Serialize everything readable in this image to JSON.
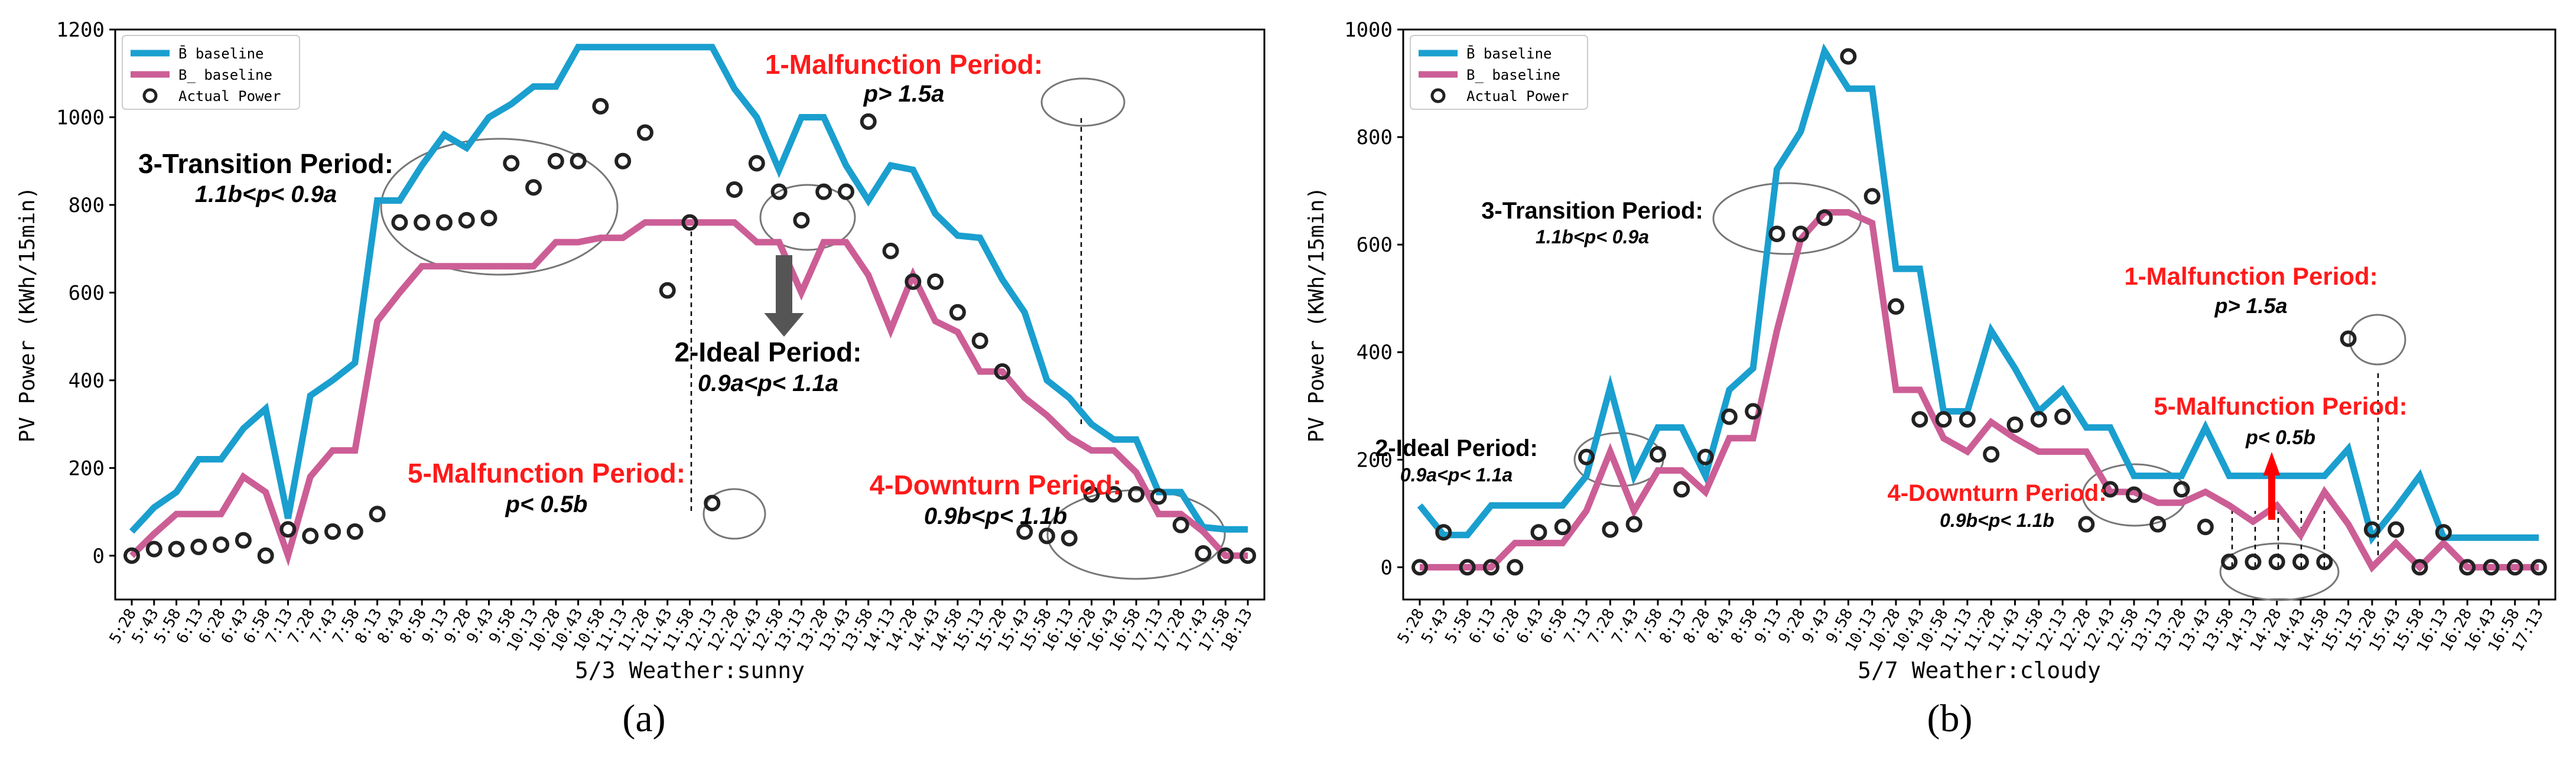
{
  "chart_data": [
    {
      "type": "line",
      "panel_label": "(a)",
      "xlabel": "5/3 Weather:sunny",
      "ylabel": "PV Power (KWh/15min)",
      "ylim": [
        -100,
        1200
      ],
      "yticks": [
        0,
        200,
        400,
        600,
        800,
        1000,
        1200
      ],
      "ytick_labels": [
        "0",
        "200",
        "400",
        "600",
        "800",
        "1000",
        "1200"
      ],
      "x_tick_labels": [
        "5:28",
        "5:43",
        "5:58",
        "6:13",
        "6:28",
        "6:43",
        "6:58",
        "7:13",
        "7:28",
        "7:43",
        "7:58",
        "8:13",
        "8:43",
        "8:58",
        "9:13",
        "9:28",
        "9:43",
        "9:58",
        "10:13",
        "10:28",
        "10:43",
        "10:58",
        "11:13",
        "11:28",
        "11:43",
        "11:58",
        "12:13",
        "12:28",
        "12:43",
        "12:58",
        "13:13",
        "13:28",
        "13:43",
        "13:58",
        "14:13",
        "14:28",
        "14:43",
        "14:58",
        "15:13",
        "15:28",
        "15:43",
        "15:58",
        "16:13",
        "16:28",
        "16:43",
        "16:58",
        "17:13",
        "17:28",
        "17:43",
        "17:58",
        "18:13"
      ],
      "legend": [
        "B̄ baseline",
        "B̲ baseline",
        "Actual Power"
      ],
      "legend_position": "top-left",
      "series": [
        {
          "name": "B̄ baseline",
          "color": "#1a9fcf",
          "values": [
            55,
            110,
            145,
            220,
            220,
            290,
            335,
            85,
            365,
            400,
            440,
            810,
            810,
            890,
            960,
            930,
            1000,
            1030,
            1070,
            1070,
            1160,
            1160,
            1160,
            1160,
            1160,
            1160,
            1160,
            1065,
            1000,
            880,
            1000,
            1000,
            890,
            810,
            890,
            880,
            780,
            730,
            725,
            630,
            555,
            400,
            360,
            300,
            265,
            265,
            145,
            145,
            65,
            60,
            60
          ]
        },
        {
          "name": "B̲ baseline",
          "color": "#cc5e96",
          "values": [
            0,
            50,
            95,
            95,
            95,
            180,
            145,
            0,
            180,
            240,
            240,
            535,
            600,
            660,
            660,
            660,
            660,
            660,
            660,
            715,
            715,
            725,
            725,
            760,
            760,
            760,
            760,
            760,
            715,
            715,
            600,
            715,
            715,
            640,
            515,
            640,
            535,
            510,
            420,
            420,
            360,
            320,
            270,
            240,
            240,
            190,
            95,
            95,
            55,
            0,
            0
          ]
        },
        {
          "name": "Actual Power",
          "color": "#222222",
          "values": [
            0,
            15,
            15,
            20,
            25,
            35,
            0,
            60,
            45,
            55,
            55,
            95,
            760,
            760,
            760,
            765,
            770,
            895,
            840,
            900,
            900,
            1025,
            900,
            965,
            605,
            760,
            120,
            835,
            895,
            830,
            765,
            830,
            830,
            990,
            695,
            625,
            625,
            555,
            490,
            420,
            55,
            45,
            40,
            140,
            140,
            140,
            135,
            70,
            5,
            0,
            0
          ]
        }
      ],
      "annotations": [
        {
          "text": "1-Malfunction Period:",
          "color": "red"
        },
        {
          "text": "p> 1.5a",
          "color": "black"
        },
        {
          "text": "3-Transition Period:",
          "color": "black"
        },
        {
          "text": "1.1b<p< 0.9a",
          "color": "black"
        },
        {
          "text": "2-Ideal Period:",
          "color": "black"
        },
        {
          "text": "0.9a<p< 1.1a",
          "color": "black"
        },
        {
          "text": "5-Malfunction Period:",
          "color": "red"
        },
        {
          "text": "p< 0.5b",
          "color": "black"
        },
        {
          "text": "4-Downturn Period:",
          "color": "red"
        },
        {
          "text": "0.9b<p< 1.1b",
          "color": "black"
        }
      ]
    },
    {
      "type": "line",
      "panel_label": "(b)",
      "xlabel": "5/7 Weather:cloudy",
      "ylabel": "PV Power (KWh/15min)",
      "ylim": [
        -60,
        1000
      ],
      "yticks": [
        0,
        200,
        400,
        600,
        800,
        1000
      ],
      "ytick_labels": [
        "0",
        "200",
        "400",
        "600",
        "800",
        "1000"
      ],
      "x_tick_labels": [
        "5:28",
        "5:43",
        "5:58",
        "6:13",
        "6:28",
        "6:43",
        "6:58",
        "7:13",
        "7:28",
        "7:43",
        "7:58",
        "8:13",
        "8:28",
        "8:43",
        "8:58",
        "9:13",
        "9:28",
        "9:43",
        "9:58",
        "10:13",
        "10:28",
        "10:43",
        "10:58",
        "11:13",
        "11:28",
        "11:43",
        "11:58",
        "12:13",
        "12:28",
        "12:43",
        "12:58",
        "13:13",
        "13:28",
        "13:43",
        "13:58",
        "14:13",
        "14:28",
        "14:43",
        "14:58",
        "15:13",
        "15:28",
        "15:43",
        "15:58",
        "16:13",
        "16:28",
        "16:43",
        "16:58",
        "17:13"
      ],
      "legend": [
        "B̄ baseline",
        "B̲ baseline",
        "Actual Power"
      ],
      "legend_position": "top-left",
      "series": [
        {
          "name": "B̄ baseline",
          "color": "#1a9fcf",
          "values": [
            115,
            60,
            60,
            115,
            115,
            115,
            115,
            170,
            335,
            170,
            260,
            260,
            170,
            330,
            370,
            740,
            810,
            960,
            890,
            890,
            555,
            555,
            290,
            290,
            440,
            370,
            290,
            330,
            260,
            260,
            170,
            170,
            170,
            260,
            170,
            170,
            170,
            170,
            170,
            220,
            55,
            110,
            170,
            55,
            55,
            55,
            55,
            55
          ]
        },
        {
          "name": "B̲ baseline",
          "color": "#cc5e96",
          "values": [
            0,
            0,
            0,
            0,
            45,
            45,
            45,
            105,
            215,
            105,
            180,
            180,
            140,
            240,
            240,
            440,
            610,
            660,
            660,
            640,
            330,
            330,
            240,
            215,
            270,
            240,
            215,
            215,
            215,
            140,
            140,
            120,
            120,
            140,
            115,
            85,
            115,
            60,
            140,
            80,
            0,
            45,
            0,
            45,
            0,
            0,
            0,
            0
          ]
        },
        {
          "name": "Actual Power",
          "color": "#222222",
          "values": [
            0,
            65,
            0,
            0,
            0,
            65,
            75,
            205,
            70,
            80,
            210,
            145,
            205,
            280,
            290,
            620,
            620,
            650,
            950,
            690,
            485,
            275,
            275,
            275,
            210,
            265,
            275,
            280,
            80,
            145,
            135,
            80,
            145,
            75,
            10,
            10,
            10,
            10,
            10,
            425,
            70,
            70,
            0,
            65,
            0,
            0,
            0,
            0
          ]
        }
      ],
      "annotations": [
        {
          "text": "3-Transition Period:",
          "color": "black"
        },
        {
          "text": "1.1b<p< 0.9a",
          "color": "black"
        },
        {
          "text": "1-Malfunction Period:",
          "color": "red"
        },
        {
          "text": "p> 1.5a",
          "color": "black"
        },
        {
          "text": "5-Malfunction Period:",
          "color": "red"
        },
        {
          "text": "p< 0.5b",
          "color": "black"
        },
        {
          "text": "2-Ideal Period:",
          "color": "black"
        },
        {
          "text": "0.9a<p< 1.1a",
          "color": "black"
        },
        {
          "text": "4-Downturn Period:",
          "color": "red"
        },
        {
          "text": "0.9b<p< 1.1b",
          "color": "black"
        }
      ]
    }
  ]
}
